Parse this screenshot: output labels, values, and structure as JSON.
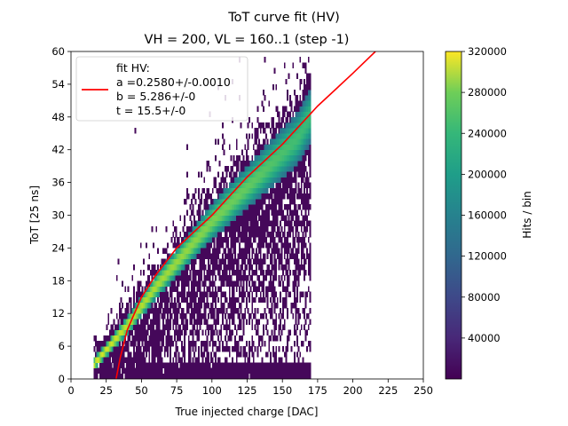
{
  "chart_data": {
    "type": "heatmap",
    "title": "ToT curve fit (HV)",
    "subtitle": "VH = 200, VL = 160..1 (step -1)",
    "xlabel": "True injected charge [DAC]",
    "ylabel": "ToT [25 ns]",
    "xlim": [
      0,
      250
    ],
    "ylim": [
      0,
      60
    ],
    "xticks": [
      "0",
      "25",
      "50",
      "75",
      "100",
      "125",
      "150",
      "175",
      "200",
      "225",
      "250"
    ],
    "yticks": [
      "0",
      "6",
      "12",
      "18",
      "24",
      "30",
      "36",
      "42",
      "48",
      "54",
      "60"
    ],
    "grid": false,
    "colormap": "viridis",
    "colorbar": {
      "label": "Hits / bin",
      "range": [
        0,
        320000
      ],
      "ticks": [
        "40000",
        "80000",
        "120000",
        "160000",
        "200000",
        "240000",
        "280000",
        "320000"
      ]
    },
    "histogram": {
      "x_range": [
        16,
        169
      ],
      "band_center": [
        {
          "x": 20,
          "y": 4
        },
        {
          "x": 40,
          "y": 10
        },
        {
          "x": 60,
          "y": 17
        },
        {
          "x": 80,
          "y": 23
        },
        {
          "x": 100,
          "y": 29
        },
        {
          "x": 120,
          "y": 34
        },
        {
          "x": 140,
          "y": 39
        },
        {
          "x": 160,
          "y": 44
        },
        {
          "x": 169,
          "y": 48
        }
      ],
      "peak_hits_per_bin": 320000
    },
    "fit": {
      "name": "fit HV:",
      "color": "#ff0000",
      "model": "ToT = a*x + b - c/(x - t)",
      "params_display": [
        "a =0.2580+/-0.0010",
        "b = 5.286+/-0",
        "t = 15.5+/-0"
      ],
      "curve": [
        {
          "x": 32,
          "y": 0
        },
        {
          "x": 35,
          "y": 4
        },
        {
          "x": 40,
          "y": 9
        },
        {
          "x": 50,
          "y": 15
        },
        {
          "x": 60,
          "y": 19
        },
        {
          "x": 75,
          "y": 24
        },
        {
          "x": 100,
          "y": 30
        },
        {
          "x": 125,
          "y": 37
        },
        {
          "x": 150,
          "y": 43
        },
        {
          "x": 175,
          "y": 50
        },
        {
          "x": 200,
          "y": 56
        },
        {
          "x": 216,
          "y": 60
        }
      ]
    },
    "legend": {
      "placement": "upper-left"
    }
  }
}
